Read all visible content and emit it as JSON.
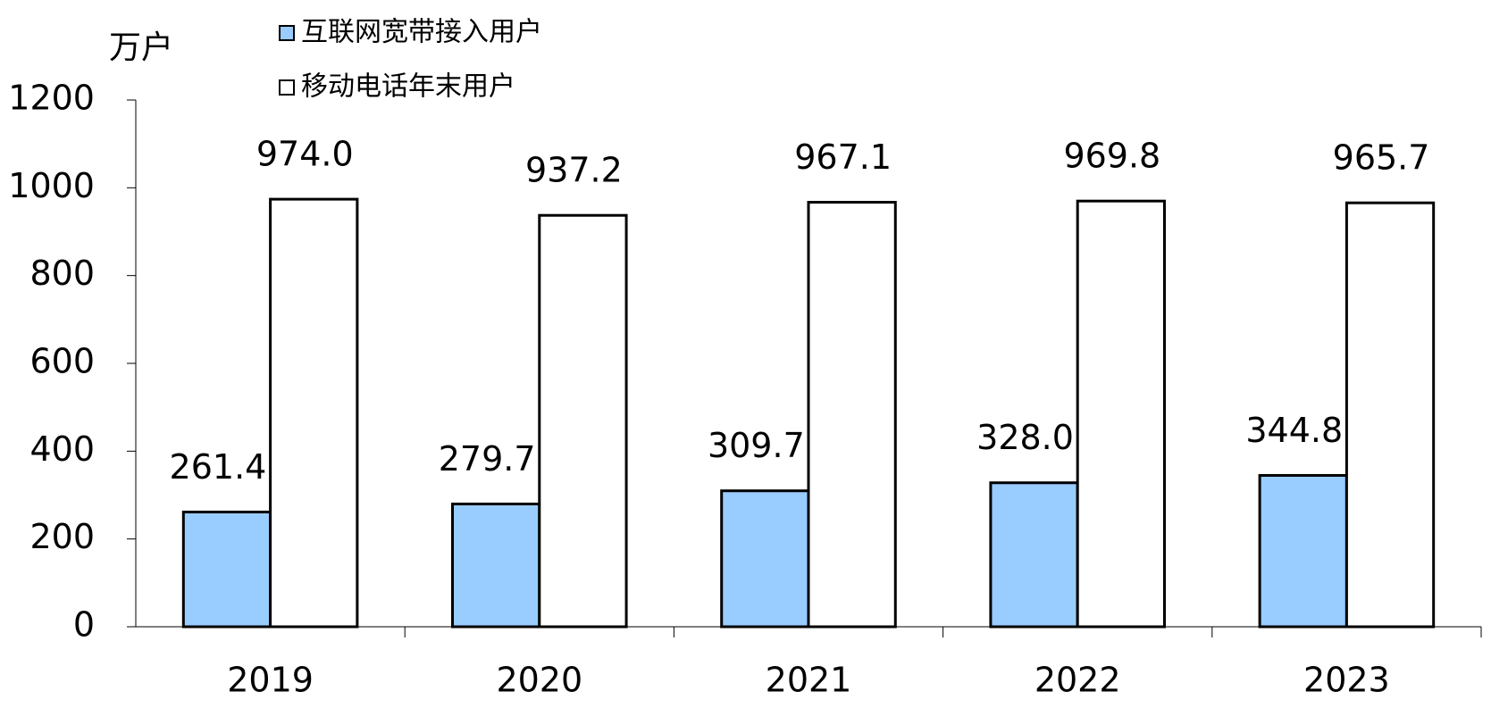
{
  "chart_data": {
    "type": "bar",
    "y_unit": "万户",
    "categories": [
      "2019",
      "2020",
      "2021",
      "2022",
      "2023"
    ],
    "series": [
      {
        "name": "互联网宽带接入用户",
        "color": "#99ccff",
        "values": [
          261.4,
          279.7,
          309.7,
          328.0,
          344.8
        ],
        "value_labels": [
          "261.4",
          "279.7",
          "309.7",
          "328.0",
          "344.8"
        ]
      },
      {
        "name": "移动电话年末用户",
        "color": "#ffffff",
        "values": [
          974.0,
          937.2,
          967.1,
          969.8,
          965.7
        ],
        "value_labels": [
          "974.0",
          "937.2",
          "967.1",
          "969.8",
          "965.7"
        ]
      }
    ],
    "ylim": [
      0,
      1200
    ],
    "yticks": [
      0,
      200,
      400,
      600,
      800,
      1000,
      1200
    ],
    "grid": false,
    "legend": "top"
  }
}
